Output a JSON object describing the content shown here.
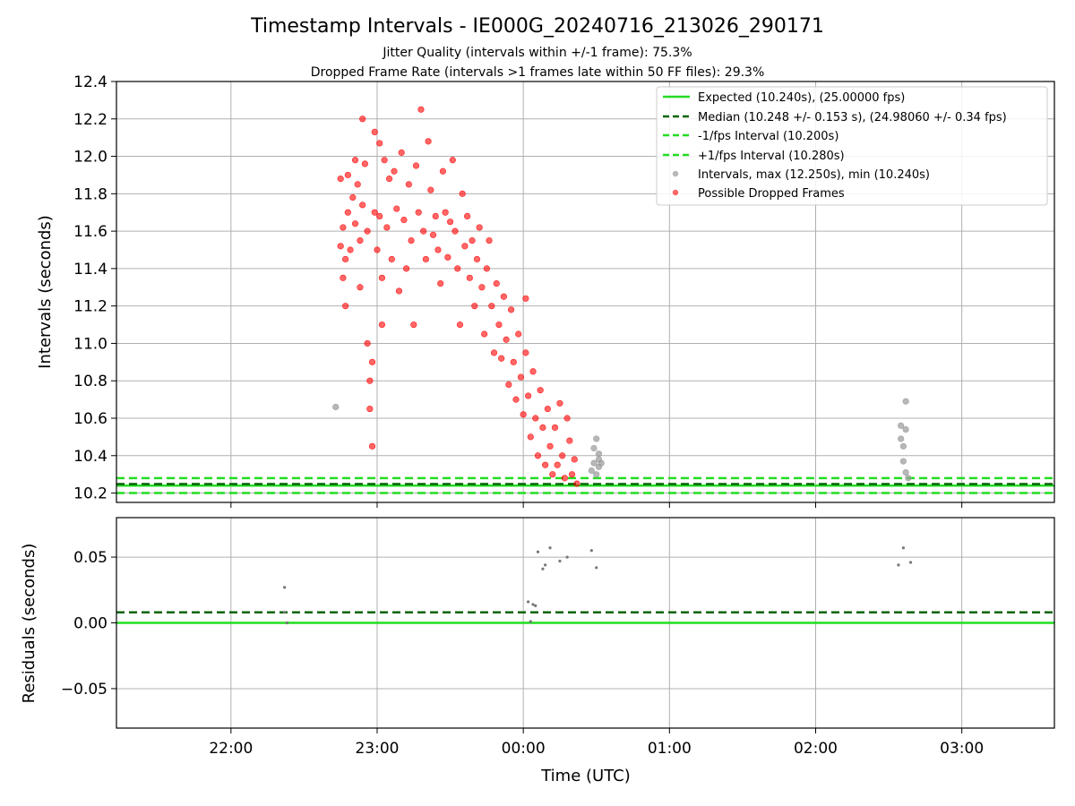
{
  "chart_data": [
    {
      "type": "scatter",
      "title": "Timestamp Intervals - IE000G_20240716_213026_290171",
      "subtitle_1": "Jitter Quality (intervals within +/-1 frame): 75.3%",
      "subtitle_2": "Dropped Frame Rate (intervals >1 frames late within 50 FF files): 29.3%",
      "ylabel": "Intervals (seconds)",
      "xlim": [
        "21:13",
        "03:38"
      ],
      "ylim": [
        10.15,
        12.4
      ],
      "grid": true,
      "legend_position": "upper-right",
      "x_ticks": [
        "22:00",
        "23:00",
        "00:00",
        "01:00",
        "02:00",
        "03:00"
      ],
      "y_ticks": [
        "10.2",
        "10.4",
        "10.6",
        "10.8",
        "11.0",
        "11.2",
        "11.4",
        "11.6",
        "11.8",
        "12.0",
        "12.2",
        "12.4"
      ],
      "reference_lines": [
        {
          "name": "Expected (10.240s), (25.00000 fps)",
          "y": 10.24,
          "style": "solid",
          "color": "#22dd22"
        },
        {
          "name": "Median (10.248 +/- 0.153 s), (24.98060 +/- 0.34 fps)",
          "y": 10.248,
          "style": "dashed",
          "color": "#006400"
        },
        {
          "name": "-1/fps Interval (10.200s)",
          "y": 10.2,
          "style": "dashed",
          "color": "#22dd22"
        },
        {
          "name": "+1/fps Interval (10.280s)",
          "y": 10.28,
          "style": "dashed",
          "color": "#22dd22"
        }
      ],
      "series": [
        {
          "name": "Intervals, max (12.250s), min (10.240s)",
          "color": "#999999",
          "points": [
            [
              "22:43",
              10.66
            ],
            [
              "00:28",
              10.32
            ],
            [
              "00:29",
              10.36
            ],
            [
              "00:29",
              10.44
            ],
            [
              "00:30",
              10.3
            ],
            [
              "00:30",
              10.49
            ],
            [
              "00:31",
              10.38
            ],
            [
              "00:31",
              10.34
            ],
            [
              "00:31",
              10.41
            ],
            [
              "00:32",
              10.36
            ],
            [
              "02:35",
              10.49
            ],
            [
              "02:35",
              10.56
            ],
            [
              "02:36",
              10.37
            ],
            [
              "02:36",
              10.45
            ],
            [
              "02:37",
              10.69
            ],
            [
              "02:37",
              10.54
            ],
            [
              "02:37",
              10.31
            ],
            [
              "02:38",
              10.28
            ]
          ]
        },
        {
          "name": "Possible Dropped Frames",
          "color": "#ff0000",
          "points": [
            [
              "22:45",
              11.88
            ],
            [
              "22:45",
              11.52
            ],
            [
              "22:46",
              11.62
            ],
            [
              "22:46",
              11.35
            ],
            [
              "22:47",
              11.45
            ],
            [
              "22:47",
              11.2
            ],
            [
              "22:48",
              11.9
            ],
            [
              "22:48",
              11.7
            ],
            [
              "22:49",
              11.5
            ],
            [
              "22:50",
              11.78
            ],
            [
              "22:51",
              11.98
            ],
            [
              "22:51",
              11.64
            ],
            [
              "22:52",
              11.85
            ],
            [
              "22:53",
              11.55
            ],
            [
              "22:53",
              11.3
            ],
            [
              "22:54",
              12.2
            ],
            [
              "22:54",
              11.74
            ],
            [
              "22:55",
              11.96
            ],
            [
              "22:56",
              11.6
            ],
            [
              "22:56",
              11.0
            ],
            [
              "22:57",
              10.8
            ],
            [
              "22:57",
              10.65
            ],
            [
              "22:58",
              10.45
            ],
            [
              "22:58",
              10.9
            ],
            [
              "22:59",
              12.13
            ],
            [
              "22:59",
              11.7
            ],
            [
              "23:00",
              11.5
            ],
            [
              "23:01",
              12.07
            ],
            [
              "23:01",
              11.68
            ],
            [
              "23:02",
              11.35
            ],
            [
              "23:02",
              11.1
            ],
            [
              "23:03",
              11.98
            ],
            [
              "23:04",
              11.62
            ],
            [
              "23:05",
              11.88
            ],
            [
              "23:06",
              11.45
            ],
            [
              "23:07",
              11.92
            ],
            [
              "23:08",
              11.72
            ],
            [
              "23:09",
              11.28
            ],
            [
              "23:10",
              12.02
            ],
            [
              "23:11",
              11.66
            ],
            [
              "23:12",
              11.4
            ],
            [
              "23:13",
              11.85
            ],
            [
              "23:14",
              11.55
            ],
            [
              "23:15",
              11.1
            ],
            [
              "23:16",
              11.95
            ],
            [
              "23:17",
              11.7
            ],
            [
              "23:18",
              12.25
            ],
            [
              "23:19",
              11.6
            ],
            [
              "23:20",
              11.45
            ],
            [
              "23:21",
              12.08
            ],
            [
              "23:22",
              11.82
            ],
            [
              "23:23",
              11.58
            ],
            [
              "23:24",
              11.68
            ],
            [
              "23:25",
              11.5
            ],
            [
              "23:26",
              11.32
            ],
            [
              "23:27",
              11.92
            ],
            [
              "23:28",
              11.7
            ],
            [
              "23:29",
              11.46
            ],
            [
              "23:30",
              11.65
            ],
            [
              "23:31",
              11.98
            ],
            [
              "23:32",
              11.6
            ],
            [
              "23:33",
              11.4
            ],
            [
              "23:34",
              11.1
            ],
            [
              "23:35",
              11.8
            ],
            [
              "23:36",
              11.52
            ],
            [
              "23:37",
              11.68
            ],
            [
              "23:38",
              11.35
            ],
            [
              "23:39",
              11.55
            ],
            [
              "23:40",
              11.2
            ],
            [
              "23:41",
              11.45
            ],
            [
              "23:42",
              11.62
            ],
            [
              "23:43",
              11.3
            ],
            [
              "23:44",
              11.05
            ],
            [
              "23:45",
              11.4
            ],
            [
              "23:46",
              11.55
            ],
            [
              "23:47",
              11.2
            ],
            [
              "23:48",
              10.95
            ],
            [
              "23:49",
              11.32
            ],
            [
              "23:50",
              11.1
            ],
            [
              "23:51",
              10.92
            ],
            [
              "23:52",
              11.25
            ],
            [
              "23:53",
              11.02
            ],
            [
              "23:54",
              10.78
            ],
            [
              "23:55",
              11.18
            ],
            [
              "23:56",
              10.9
            ],
            [
              "23:57",
              10.7
            ],
            [
              "23:58",
              11.05
            ],
            [
              "23:59",
              10.82
            ],
            [
              "00:00",
              10.62
            ],
            [
              "00:01",
              10.95
            ],
            [
              "00:01",
              11.24
            ],
            [
              "00:02",
              10.72
            ],
            [
              "00:03",
              10.5
            ],
            [
              "00:04",
              10.85
            ],
            [
              "00:05",
              10.6
            ],
            [
              "00:06",
              10.4
            ],
            [
              "00:07",
              10.75
            ],
            [
              "00:08",
              10.55
            ],
            [
              "00:09",
              10.35
            ],
            [
              "00:10",
              10.65
            ],
            [
              "00:11",
              10.45
            ],
            [
              "00:12",
              10.3
            ],
            [
              "00:13",
              10.55
            ],
            [
              "00:14",
              10.35
            ],
            [
              "00:15",
              10.68
            ],
            [
              "00:16",
              10.4
            ],
            [
              "00:17",
              10.28
            ],
            [
              "00:18",
              10.6
            ],
            [
              "00:19",
              10.48
            ],
            [
              "00:20",
              10.3
            ],
            [
              "00:21",
              10.38
            ],
            [
              "00:22",
              10.25
            ]
          ]
        }
      ]
    },
    {
      "type": "scatter",
      "xlabel": "Time (UTC)",
      "ylabel": "Residuals (seconds)",
      "xlim": [
        "21:13",
        "03:38"
      ],
      "ylim": [
        -0.08,
        0.08
      ],
      "grid": true,
      "x_ticks": [
        "22:00",
        "23:00",
        "00:00",
        "01:00",
        "02:00",
        "03:00"
      ],
      "y_ticks": [
        "−0.05",
        "0.00",
        "0.05"
      ],
      "y_tick_values": [
        -0.05,
        0.0,
        0.05
      ],
      "reference_lines": [
        {
          "y": 0.0,
          "style": "solid",
          "color": "#22dd22"
        },
        {
          "y": 0.008,
          "style": "dashed",
          "color": "#006400"
        }
      ],
      "series": [
        {
          "color": "#777777",
          "points": [
            [
              "22:22",
              0.027
            ],
            [
              "22:22",
              0.008
            ],
            [
              "22:23",
              0.0
            ],
            [
              "00:02",
              0.016
            ],
            [
              "00:03",
              0.001
            ],
            [
              "00:04",
              0.014
            ],
            [
              "00:05",
              0.013
            ],
            [
              "00:06",
              0.054
            ],
            [
              "00:08",
              0.041
            ],
            [
              "00:09",
              0.044
            ],
            [
              "00:11",
              0.057
            ],
            [
              "00:15",
              0.047
            ],
            [
              "00:18",
              0.05
            ],
            [
              "00:28",
              0.055
            ],
            [
              "00:30",
              0.042
            ],
            [
              "02:34",
              0.044
            ],
            [
              "02:36",
              0.057
            ],
            [
              "02:39",
              0.046
            ]
          ]
        }
      ]
    }
  ]
}
